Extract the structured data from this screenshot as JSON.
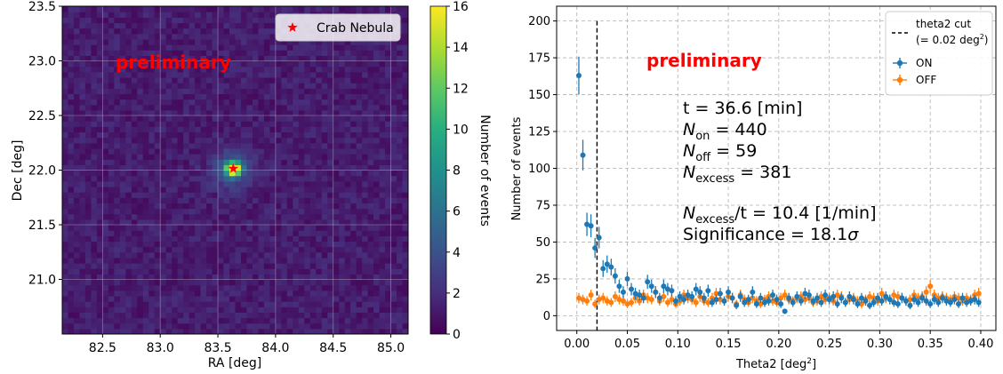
{
  "chart_data": [
    {
      "type": "heatmap",
      "xlabel": "RA [deg]",
      "ylabel": "Dec [deg]",
      "xlim": [
        82.15,
        85.15
      ],
      "ylim": [
        20.5,
        23.5
      ],
      "x_ticks": [
        "82.5",
        "83.0",
        "83.5",
        "84.0",
        "84.5",
        "85.0"
      ],
      "y_ticks": [
        "21.0",
        "21.5",
        "22.0",
        "22.5",
        "23.0",
        "23.5"
      ],
      "grid": true,
      "source": {
        "name": "Crab Nebula",
        "ra": 83.633,
        "dec": 22.0145
      },
      "legend": {
        "label": "Crab Nebula",
        "placement": "top-right"
      },
      "peak_counts": 16,
      "background_counts": 1,
      "colorbar": {
        "label": "Number of events",
        "range": [
          0,
          16
        ],
        "ticks": [
          "0",
          "2",
          "4",
          "6",
          "8",
          "10",
          "12",
          "14",
          "16"
        ]
      },
      "annotation": "preliminary"
    },
    {
      "type": "scatter",
      "xlabel": "Theta2 [deg",
      "xlabel_sup": "2",
      "xlabel_end": "]",
      "ylabel": "Number of events",
      "xlim": [
        -0.02,
        0.415
      ],
      "ylim": [
        -10,
        210
      ],
      "x_ticks": [
        "0.00",
        "0.05",
        "0.10",
        "0.15",
        "0.20",
        "0.25",
        "0.30",
        "0.35",
        "0.40"
      ],
      "y_ticks": [
        "0",
        "25",
        "50",
        "75",
        "100",
        "125",
        "150",
        "175",
        "200"
      ],
      "grid": true,
      "theta2_cut": 0.02,
      "legend": {
        "placement": "top-right",
        "cut_label_line1": "theta2 cut",
        "cut_label_line2": "(= 0.02 deg",
        "cut_label_sup": "2",
        "cut_label_end": ")",
        "on_label": "ON",
        "off_label": "OFF"
      },
      "series": [
        {
          "name": "ON",
          "color": "#1f77b4",
          "x": [
            0.002,
            0.006,
            0.01,
            0.014,
            0.018,
            0.022,
            0.026,
            0.03,
            0.034,
            0.038,
            0.042,
            0.046,
            0.05,
            0.054,
            0.058,
            0.062,
            0.066,
            0.07,
            0.074,
            0.078,
            0.082,
            0.086,
            0.09,
            0.094,
            0.098,
            0.102,
            0.106,
            0.11,
            0.114,
            0.118,
            0.122,
            0.126,
            0.13,
            0.134,
            0.138,
            0.142,
            0.146,
            0.15,
            0.154,
            0.158,
            0.162,
            0.166,
            0.17,
            0.174,
            0.178,
            0.182,
            0.186,
            0.19,
            0.194,
            0.198,
            0.202,
            0.206,
            0.21,
            0.214,
            0.218,
            0.222,
            0.226,
            0.23,
            0.234,
            0.238,
            0.242,
            0.246,
            0.25,
            0.254,
            0.258,
            0.262,
            0.266,
            0.27,
            0.274,
            0.278,
            0.282,
            0.286,
            0.29,
            0.294,
            0.298,
            0.302,
            0.306,
            0.31,
            0.314,
            0.318,
            0.322,
            0.326,
            0.33,
            0.334,
            0.338,
            0.342,
            0.346,
            0.35,
            0.354,
            0.358,
            0.362,
            0.366,
            0.37,
            0.374,
            0.378,
            0.382,
            0.386,
            0.39,
            0.394,
            0.398
          ],
          "y": [
            163,
            109,
            62,
            61,
            46,
            53,
            32,
            35,
            33,
            27,
            20,
            16,
            25,
            18,
            15,
            14,
            12,
            23,
            20,
            16,
            12,
            20,
            18,
            17,
            10,
            13,
            11,
            14,
            13,
            18,
            16,
            12,
            17,
            9,
            11,
            15,
            10,
            16,
            12,
            7,
            13,
            9,
            11,
            16,
            8,
            12,
            9,
            10,
            14,
            11,
            8,
            3,
            12,
            9,
            13,
            10,
            15,
            14,
            10,
            12,
            9,
            14,
            11,
            13,
            8,
            12,
            9,
            13,
            11,
            8,
            12,
            10,
            7,
            9,
            12,
            10,
            13,
            11,
            9,
            8,
            12,
            10,
            7,
            11,
            9,
            12,
            10,
            8,
            11,
            9,
            12,
            10,
            9,
            11,
            8,
            12,
            9,
            10,
            11,
            9
          ],
          "err": [
            12.8,
            10.4,
            7.9,
            7.8,
            6.8,
            7.3,
            5.7,
            5.9,
            5.7,
            5.2,
            4.5,
            4.0,
            5.0,
            4.2,
            3.9,
            3.7,
            3.5,
            4.8,
            4.5,
            4.0,
            3.5,
            4.5,
            4.2,
            4.1,
            3.2,
            3.6,
            3.3,
            3.7,
            3.6,
            4.2,
            4.0,
            3.5,
            4.1,
            3.0,
            3.3,
            3.9,
            3.2,
            4.0,
            3.5,
            2.6,
            3.6,
            3.0,
            3.3,
            4.0,
            2.8,
            3.5,
            3.0,
            3.2,
            3.7,
            3.3,
            2.8,
            1.7,
            3.5,
            3.0,
            3.6,
            3.2,
            3.9,
            3.7,
            3.2,
            3.5,
            3.0,
            3.7,
            3.3,
            3.6,
            2.8,
            3.5,
            3.0,
            3.6,
            3.3,
            2.8,
            3.5,
            3.2,
            2.6,
            3.0,
            3.5,
            3.2,
            3.6,
            3.3,
            3.0,
            2.8,
            3.5,
            3.2,
            2.6,
            3.3,
            3.0,
            3.5,
            3.2,
            2.8,
            3.3,
            3.0,
            3.5,
            3.2,
            3.0,
            3.3,
            2.8,
            3.5,
            3.0,
            3.2,
            3.3,
            3.0
          ]
        },
        {
          "name": "OFF",
          "color": "#ff7f0e",
          "x": [
            0.002,
            0.006,
            0.01,
            0.014,
            0.018,
            0.022,
            0.026,
            0.03,
            0.034,
            0.038,
            0.042,
            0.046,
            0.05,
            0.054,
            0.058,
            0.062,
            0.066,
            0.07,
            0.074,
            0.078,
            0.082,
            0.086,
            0.09,
            0.094,
            0.098,
            0.102,
            0.106,
            0.11,
            0.114,
            0.118,
            0.122,
            0.126,
            0.13,
            0.134,
            0.138,
            0.142,
            0.146,
            0.15,
            0.154,
            0.158,
            0.162,
            0.166,
            0.17,
            0.174,
            0.178,
            0.182,
            0.186,
            0.19,
            0.194,
            0.198,
            0.202,
            0.206,
            0.21,
            0.214,
            0.218,
            0.222,
            0.226,
            0.23,
            0.234,
            0.238,
            0.242,
            0.246,
            0.25,
            0.254,
            0.258,
            0.262,
            0.266,
            0.27,
            0.274,
            0.278,
            0.282,
            0.286,
            0.29,
            0.294,
            0.298,
            0.302,
            0.306,
            0.31,
            0.314,
            0.318,
            0.322,
            0.326,
            0.33,
            0.334,
            0.338,
            0.342,
            0.346,
            0.35,
            0.354,
            0.358,
            0.362,
            0.366,
            0.37,
            0.374,
            0.378,
            0.382,
            0.386,
            0.39,
            0.394,
            0.398
          ],
          "y": [
            12,
            11,
            10,
            14,
            8,
            11,
            12,
            10,
            9,
            13,
            11,
            10,
            8,
            9,
            12,
            10,
            14,
            12,
            11,
            16,
            10,
            13,
            9,
            11,
            8,
            10,
            14,
            12,
            11,
            9,
            13,
            10,
            9,
            12,
            15,
            11,
            10,
            13,
            12,
            8,
            14,
            11,
            9,
            12,
            10,
            8,
            11,
            13,
            10,
            9,
            12,
            14,
            11,
            10,
            12,
            13,
            11,
            12,
            9,
            10,
            13,
            11,
            12,
            10,
            14,
            13,
            9,
            11,
            12,
            10,
            8,
            11,
            13,
            12,
            10,
            15,
            12,
            11,
            14,
            13,
            12,
            10,
            11,
            14,
            12,
            13,
            16,
            20,
            14,
            12,
            13,
            12,
            11,
            13,
            12,
            10,
            12,
            11,
            14,
            15
          ],
          "err": [
            3.5,
            3.3,
            3.2,
            3.7,
            2.8,
            3.3,
            3.5,
            3.2,
            3.0,
            3.6,
            3.3,
            3.2,
            2.8,
            3.0,
            3.5,
            3.2,
            3.7,
            3.5,
            3.3,
            4.0,
            3.2,
            3.6,
            3.0,
            3.3,
            2.8,
            3.2,
            3.7,
            3.5,
            3.3,
            3.0,
            3.6,
            3.2,
            3.0,
            3.5,
            3.9,
            3.3,
            3.2,
            3.6,
            3.5,
            2.8,
            3.7,
            3.3,
            3.0,
            3.5,
            3.2,
            2.8,
            3.3,
            3.6,
            3.2,
            3.0,
            3.5,
            3.7,
            3.3,
            3.2,
            3.5,
            3.6,
            3.3,
            3.5,
            3.0,
            3.2,
            3.6,
            3.3,
            3.5,
            3.2,
            3.7,
            3.6,
            3.0,
            3.3,
            3.5,
            3.2,
            2.8,
            3.3,
            3.6,
            3.5,
            3.2,
            3.9,
            3.5,
            3.3,
            3.7,
            3.6,
            3.5,
            3.2,
            3.3,
            3.7,
            3.5,
            3.6,
            4.0,
            4.5,
            3.7,
            3.5,
            3.6,
            3.5,
            3.3,
            3.6,
            3.5,
            3.2,
            3.5,
            3.3,
            3.7,
            3.9
          ]
        }
      ],
      "annotation": "preliminary",
      "stats": {
        "t_line": "t = 36.6 [min]",
        "non_sym": "N",
        "non_sub": "on",
        "non_val": " = 440",
        "noff_sym": "N",
        "noff_sub": "off",
        "noff_val": " = 59",
        "nex_sym": "N",
        "nex_sub": "excess",
        "nex_val": " = 381",
        "rate_sym": "N",
        "rate_sub": "excess",
        "rate_val": "/t = 10.4 [1/min]",
        "sig_text": "Significance = 18.1",
        "sig_sym": "σ"
      }
    }
  ]
}
